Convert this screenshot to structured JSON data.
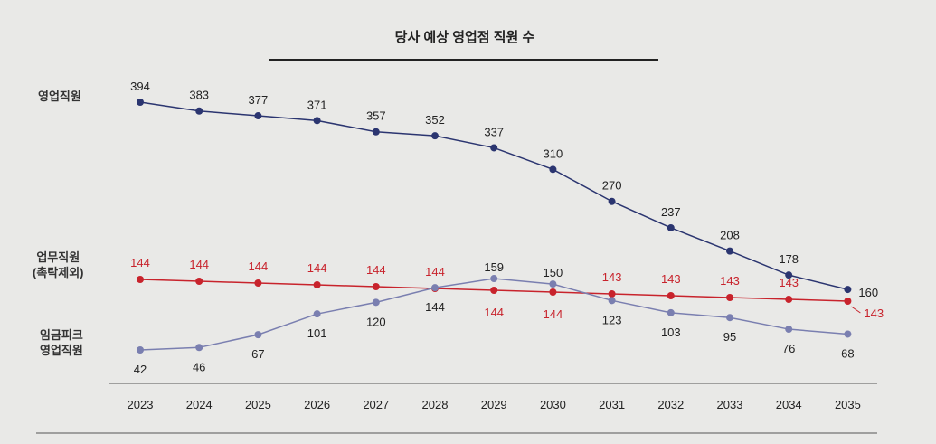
{
  "chart_data": {
    "type": "line",
    "title": "당사 예상 영업점 직원 수",
    "x": [
      "2023",
      "2024",
      "2025",
      "2026",
      "2027",
      "2028",
      "2029",
      "2030",
      "2031",
      "2032",
      "2033",
      "2034",
      "2035"
    ],
    "series": [
      {
        "name": "영업직원",
        "color": "#2b3570",
        "values": [
          394,
          383,
          377,
          371,
          357,
          352,
          337,
          310,
          270,
          237,
          208,
          178,
          160
        ]
      },
      {
        "name": "업무직원 (촉탁제외)",
        "color": "#c8232c",
        "values": [
          144,
          144,
          144,
          144,
          144,
          144,
          144,
          144,
          143,
          143,
          143,
          143,
          143
        ]
      },
      {
        "name": "임금피크 영업직원",
        "color": "#7a7fb0",
        "values": [
          42,
          46,
          67,
          101,
          120,
          144,
          159,
          150,
          123,
          103,
          95,
          76,
          68
        ]
      }
    ],
    "legend_placement": "left",
    "grid": false
  },
  "labels": {
    "sales": "영업직원",
    "business_1": "업무직원",
    "business_2": "(촉탁제외)",
    "wage_1": "임금피크",
    "wage_2": "영업직원"
  }
}
